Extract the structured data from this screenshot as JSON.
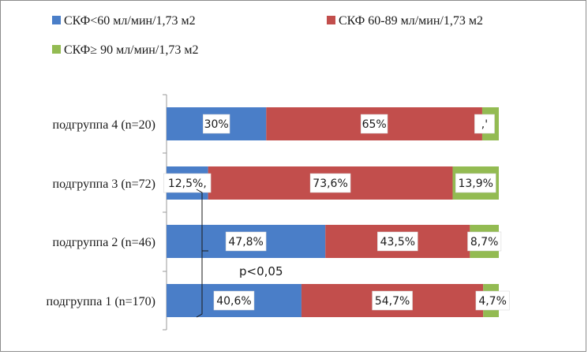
{
  "chart_data": {
    "type": "bar",
    "orientation": "horizontal",
    "stacked": "percent",
    "categories": [
      "подгруппа 4 (n=20)",
      "подгруппа 3 (n=72)",
      "подгруппа 2 (n=46)",
      "подгруппа 1 (n=170)"
    ],
    "series": [
      {
        "name": "СКФ<60 мл/мин/1,73 м2",
        "color": "#4a7ec8",
        "values": [
          30,
          12.5,
          47.8,
          40.6
        ],
        "labels": [
          "30%",
          "12,5%,",
          "47,8%",
          "40,6%"
        ]
      },
      {
        "name": "СКФ 60-89 мл/мин/1,73 м2",
        "color": "#c24e4c",
        "values": [
          65,
          73.6,
          43.5,
          54.7
        ],
        "labels": [
          "65%",
          "73,6%",
          "43,5%",
          "54,7%"
        ]
      },
      {
        "name": "СКФ≥ 90 мл/мин/1,73 м2",
        "color": "#93bb52",
        "values": [
          5,
          13.9,
          8.7,
          4.7
        ],
        "labels": [
          ",'",
          "13,9%",
          "8,7%",
          "4,7%"
        ]
      }
    ],
    "annotation": "p<0,05",
    "legend_position": "top",
    "grid": false
  }
}
